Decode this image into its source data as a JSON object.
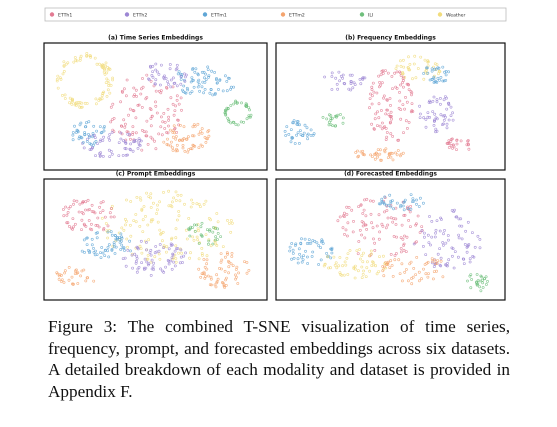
{
  "figure": {
    "legend": [
      {
        "name": "ETTh1",
        "color": "#e27a92"
      },
      {
        "name": "ETTh2",
        "color": "#9c86d4"
      },
      {
        "name": "ETTm1",
        "color": "#5fa6d6"
      },
      {
        "name": "ETTm2",
        "color": "#f4a46e"
      },
      {
        "name": "ILI",
        "color": "#6fbf7c"
      },
      {
        "name": "Weather",
        "color": "#f1dc7c"
      }
    ],
    "panels": [
      {
        "title": "(a) Time Series Embeddings"
      },
      {
        "title": "(b) Frequency Embeddings"
      },
      {
        "title": "(c) Prompt Embeddings"
      },
      {
        "title": "(d) Forecasted Embeddings"
      }
    ]
  },
  "caption": "Figure 3: The combined T-SNE visualization of time series, frequency, prompt, and forecasted embeddings across six datasets. A detailed breakdown of each modality and dataset is provided in Appendix F."
}
